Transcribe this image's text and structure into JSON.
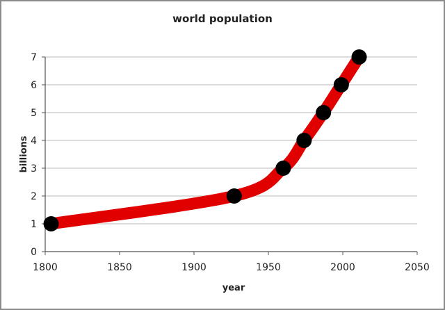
{
  "chart_data": {
    "type": "line",
    "title": "world population",
    "xlabel": "year",
    "ylabel": "billions",
    "x": [
      1804,
      1927,
      1960,
      1974,
      1987,
      1999,
      2011
    ],
    "series": [
      {
        "name": "world population",
        "values": [
          1,
          2,
          3,
          4,
          5,
          6,
          7
        ]
      }
    ],
    "xlim": [
      1800,
      2050
    ],
    "ylim": [
      0,
      7
    ],
    "xticks": [
      "1800",
      "1850",
      "1900",
      "1950",
      "2000",
      "2050"
    ],
    "yticks": [
      "0",
      "1",
      "2",
      "3",
      "4",
      "5",
      "6",
      "7"
    ],
    "grid": "horizontal",
    "legend": "none",
    "colors": {
      "line": "#e00000",
      "marker": "#000000",
      "grid": "#d0d0d0"
    }
  }
}
